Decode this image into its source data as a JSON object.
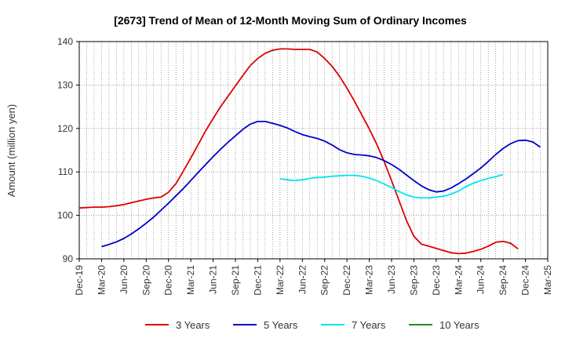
{
  "chart_data": {
    "type": "line",
    "title": "[2673]  Trend of Mean of 12-Month Moving Sum of Ordinary Incomes",
    "ylabel": "Amount (million yen)",
    "xlabel": "",
    "ylim": [
      90,
      140
    ],
    "yticks": [
      90,
      100,
      110,
      120,
      130,
      140
    ],
    "grid": true,
    "legend_position": "bottom",
    "x_tick_labels": [
      "Dec-19",
      "Mar-20",
      "Jun-20",
      "Sep-20",
      "Dec-20",
      "Mar-21",
      "Jun-21",
      "Sep-21",
      "Dec-21",
      "Mar-22",
      "Jun-22",
      "Sep-22",
      "Dec-22",
      "Mar-23",
      "Jun-23",
      "Sep-23",
      "Dec-23",
      "Mar-24",
      "Jun-24",
      "Sep-24",
      "Dec-24",
      "Mar-25"
    ],
    "x_count_months": 63,
    "series": [
      {
        "name": "3 Years",
        "color": "#dd0000",
        "start_month": 0,
        "values": [
          101.7,
          101.8,
          101.9,
          101.9,
          102.0,
          102.2,
          102.5,
          102.9,
          103.3,
          103.7,
          104.0,
          104.2,
          105.3,
          107.3,
          110.2,
          113.2,
          116.3,
          119.5,
          122.3,
          125.0,
          127.4,
          129.8,
          132.2,
          134.5,
          136.1,
          137.3,
          138.0,
          138.3,
          138.3,
          138.2,
          138.2,
          138.2,
          137.6,
          136.1,
          134.3,
          132.0,
          129.3,
          126.3,
          123.1,
          119.9,
          116.4,
          112.4,
          108.0,
          103.4,
          98.8,
          95.2,
          93.4,
          92.9,
          92.4,
          91.9,
          91.4,
          91.2,
          91.3,
          91.7,
          92.2,
          92.9,
          93.8,
          94.0,
          93.6,
          92.3
        ]
      },
      {
        "name": "5 Years",
        "color": "#0000cc",
        "start_month": 3,
        "values": [
          92.8,
          93.3,
          93.9,
          94.7,
          95.7,
          96.9,
          98.2,
          99.6,
          101.2,
          102.8,
          104.5,
          106.2,
          108.0,
          109.9,
          111.7,
          113.5,
          115.2,
          116.8,
          118.3,
          119.8,
          121.0,
          121.6,
          121.6,
          121.2,
          120.7,
          120.1,
          119.3,
          118.6,
          118.1,
          117.7,
          117.1,
          116.2,
          115.1,
          114.4,
          114.0,
          113.9,
          113.7,
          113.3,
          112.6,
          111.7,
          110.6,
          109.3,
          108.0,
          106.8,
          105.9,
          105.4,
          105.6,
          106.3,
          107.3,
          108.4,
          109.6,
          110.9,
          112.4,
          114.0,
          115.4,
          116.5,
          117.2,
          117.3,
          116.9,
          115.7
        ]
      },
      {
        "name": "7 Years",
        "color": "#00e5ee",
        "start_month": 27,
        "values": [
          108.4,
          108.2,
          108.0,
          108.2,
          108.5,
          108.7,
          108.8,
          109.0,
          109.1,
          109.2,
          109.2,
          109.0,
          108.6,
          108.0,
          107.2,
          106.4,
          105.5,
          104.7,
          104.2,
          104.0,
          104.0,
          104.2,
          104.4,
          104.9,
          105.6,
          106.6,
          107.4,
          108.0,
          108.5,
          108.9,
          109.4
        ]
      },
      {
        "name": "10 Years",
        "color": "#228b22",
        "start_month": 0,
        "values": []
      }
    ]
  }
}
